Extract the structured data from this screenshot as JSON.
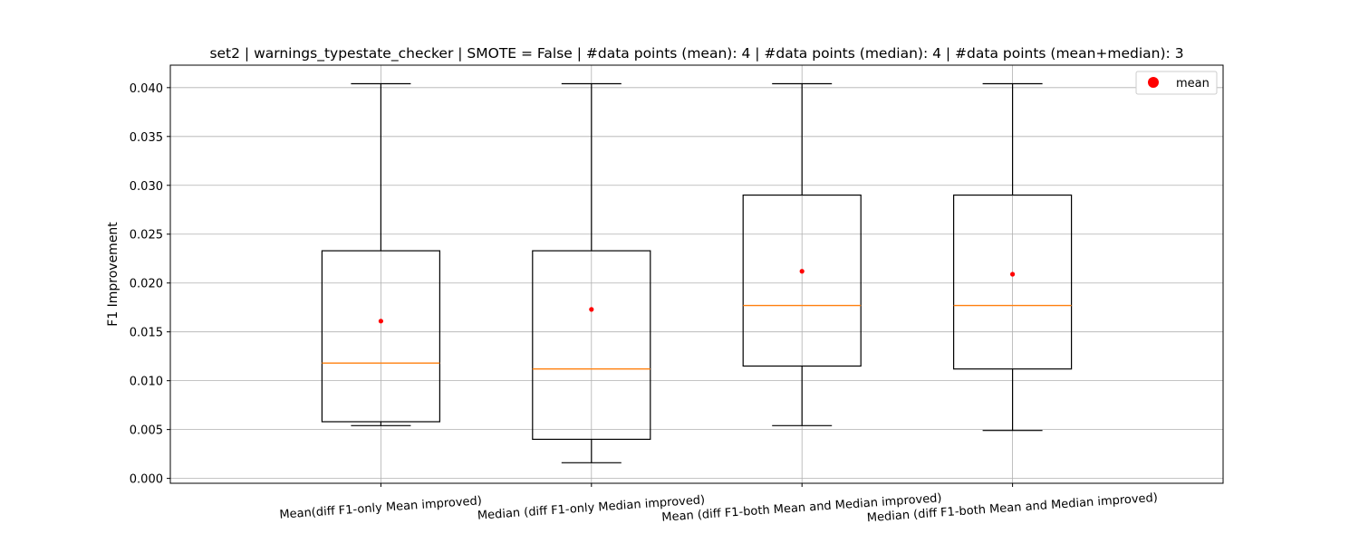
{
  "chart_data": {
    "type": "box",
    "title": "set2 | warnings_typestate_checker | SMOTE = False | #data points (mean): 4 | #data points (median): 4 | #data points (mean+median): 3",
    "xlabel": "",
    "ylabel": "F1 Improvement",
    "ylim": [
      -0.0005,
      0.0423
    ],
    "yticks": [
      "0.000",
      "0.005",
      "0.010",
      "0.015",
      "0.020",
      "0.025",
      "0.030",
      "0.035",
      "0.040"
    ],
    "ytick_values": [
      0.0,
      0.005,
      0.01,
      0.015,
      0.02,
      0.025,
      0.03,
      0.035,
      0.04
    ],
    "categories": [
      "Mean(diff F1-only Mean improved)",
      "Median (diff F1-only Median improved)",
      "Mean (diff F1-both Mean and Median improved)",
      "Median (diff F1-both Mean and Median improved)"
    ],
    "boxes": [
      {
        "whisker_low": 0.0054,
        "q1": 0.0058,
        "median": 0.0118,
        "q3": 0.0233,
        "whisker_high": 0.0404,
        "mean": 0.0161
      },
      {
        "whisker_low": 0.0016,
        "q1": 0.004,
        "median": 0.0112,
        "q3": 0.0233,
        "whisker_high": 0.0404,
        "mean": 0.0173
      },
      {
        "whisker_low": 0.0054,
        "q1": 0.0115,
        "median": 0.0177,
        "q3": 0.029,
        "whisker_high": 0.0404,
        "mean": 0.0212
      },
      {
        "whisker_low": 0.0049,
        "q1": 0.0112,
        "median": 0.0177,
        "q3": 0.029,
        "whisker_high": 0.0404,
        "mean": 0.0209
      }
    ],
    "legend": {
      "label": "mean",
      "placement": "top-right"
    },
    "grid": true,
    "colors": {
      "box": "#000000",
      "median": "#ff7f0e",
      "mean": "#ff0000",
      "grid": "#b0b0b0"
    }
  }
}
